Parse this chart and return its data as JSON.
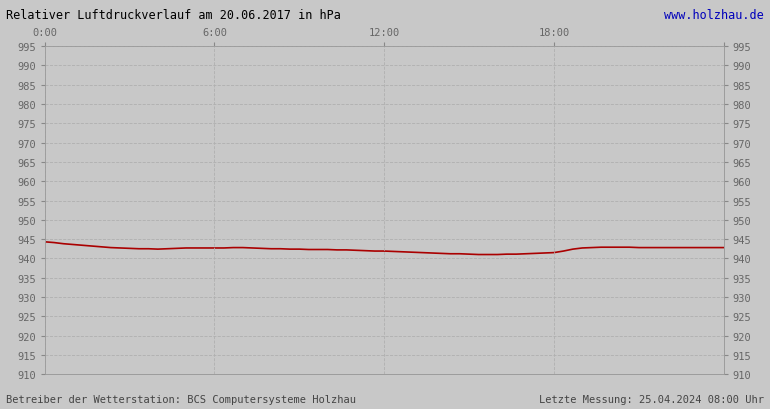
{
  "title_left": "Relativer Luftdruckverlauf am 20.06.2017 in hPa",
  "title_right": "www.holzhau.de",
  "footer_left": "Betreiber der Wetterstation: BCS Computersysteme Holzhau",
  "footer_right": "Letzte Messung: 25.04.2024 08:00 Uhr",
  "ylim": [
    910,
    995
  ],
  "xlim": [
    0,
    1440
  ],
  "ytick_step": 5,
  "xticks": [
    0,
    360,
    720,
    1080,
    1440
  ],
  "xtick_labels": [
    "0:00",
    "6:00",
    "12:00",
    "18:00",
    ""
  ],
  "bg_color": "#c8c8c8",
  "plot_bg_color": "#c8c8c8",
  "line_color": "#aa0000",
  "grid_color": "#b0b0b0",
  "title_left_color": "#000000",
  "title_right_color": "#0000bb",
  "footer_color": "#444444",
  "tick_label_color": "#666666",
  "pressure_data": [
    [
      0,
      944.3
    ],
    [
      20,
      944.1
    ],
    [
      40,
      943.8
    ],
    [
      60,
      943.6
    ],
    [
      80,
      943.4
    ],
    [
      100,
      943.2
    ],
    [
      120,
      943.0
    ],
    [
      140,
      942.8
    ],
    [
      160,
      942.7
    ],
    [
      180,
      942.6
    ],
    [
      200,
      942.5
    ],
    [
      220,
      942.5
    ],
    [
      240,
      942.4
    ],
    [
      260,
      942.5
    ],
    [
      280,
      942.6
    ],
    [
      300,
      942.7
    ],
    [
      320,
      942.7
    ],
    [
      340,
      942.7
    ],
    [
      360,
      942.7
    ],
    [
      380,
      942.7
    ],
    [
      400,
      942.8
    ],
    [
      420,
      942.8
    ],
    [
      440,
      942.7
    ],
    [
      460,
      942.6
    ],
    [
      480,
      942.5
    ],
    [
      500,
      942.5
    ],
    [
      520,
      942.4
    ],
    [
      540,
      942.4
    ],
    [
      560,
      942.3
    ],
    [
      580,
      942.3
    ],
    [
      600,
      942.3
    ],
    [
      620,
      942.2
    ],
    [
      640,
      942.2
    ],
    [
      660,
      942.1
    ],
    [
      680,
      942.0
    ],
    [
      700,
      941.9
    ],
    [
      720,
      941.9
    ],
    [
      740,
      941.8
    ],
    [
      760,
      941.7
    ],
    [
      780,
      941.6
    ],
    [
      800,
      941.5
    ],
    [
      820,
      941.4
    ],
    [
      840,
      941.3
    ],
    [
      860,
      941.2
    ],
    [
      880,
      941.2
    ],
    [
      900,
      941.1
    ],
    [
      920,
      941.0
    ],
    [
      940,
      941.0
    ],
    [
      960,
      941.0
    ],
    [
      980,
      941.1
    ],
    [
      1000,
      941.1
    ],
    [
      1020,
      941.2
    ],
    [
      1040,
      941.3
    ],
    [
      1060,
      941.4
    ],
    [
      1080,
      941.5
    ],
    [
      1100,
      941.9
    ],
    [
      1120,
      942.4
    ],
    [
      1140,
      942.7
    ],
    [
      1160,
      942.8
    ],
    [
      1180,
      942.9
    ],
    [
      1200,
      942.9
    ],
    [
      1220,
      942.9
    ],
    [
      1240,
      942.9
    ],
    [
      1260,
      942.8
    ],
    [
      1280,
      942.8
    ],
    [
      1300,
      942.8
    ],
    [
      1320,
      942.8
    ],
    [
      1340,
      942.8
    ],
    [
      1360,
      942.8
    ],
    [
      1380,
      942.8
    ],
    [
      1400,
      942.8
    ],
    [
      1420,
      942.8
    ],
    [
      1440,
      942.8
    ]
  ]
}
